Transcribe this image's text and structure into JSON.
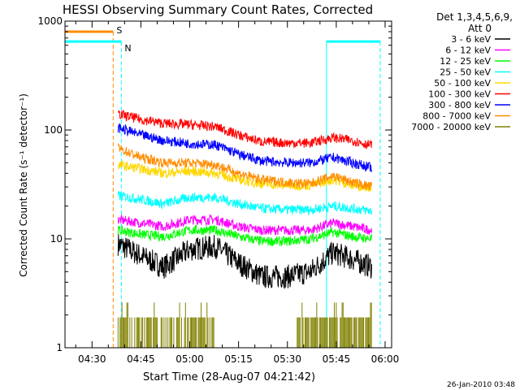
{
  "chart_data": {
    "type": "line",
    "title": "HESSI Observing Summary Count Rates, Corrected",
    "xlabel": "Start Time (28-Aug-07 04:21:42)",
    "ylabel": "Corrected Count Rate (s⁻¹ detector⁻¹)",
    "yscale": "log",
    "ylim": [
      1,
      1000
    ],
    "xlim": [
      "04:21:42",
      "06:02:00"
    ],
    "x_ticks": [
      "04:30",
      "04:45",
      "05:00",
      "05:15",
      "05:30",
      "05:45",
      "06:00"
    ],
    "y_ticks": [
      "1",
      "10",
      "100",
      "1000"
    ],
    "legend_position": "right",
    "legend_header": [
      "Det 1,3,4,5,6,9,",
      "Att 0"
    ],
    "timestamp": "26-Jan-2010 03:48",
    "series": [
      {
        "name": "3 - 6 keV",
        "color": "#000000",
        "x": [
          "04:38",
          "04:45",
          "04:52",
          "05:00",
          "05:08",
          "05:15",
          "05:22",
          "05:30",
          "05:37",
          "05:44",
          "05:50",
          "05:56"
        ],
        "y": [
          9,
          7,
          5.5,
          8,
          8.5,
          6,
          4.5,
          4.5,
          5,
          7.5,
          6.5,
          5.5
        ]
      },
      {
        "name": "6 - 12 keV",
        "color": "#ff00ff",
        "x": [
          "04:38",
          "04:45",
          "04:52",
          "05:00",
          "05:08",
          "05:15",
          "05:22",
          "05:30",
          "05:37",
          "05:44",
          "05:50",
          "05:56"
        ],
        "y": [
          15,
          14,
          13,
          15,
          15,
          13,
          12,
          12,
          12,
          14,
          13,
          12
        ]
      },
      {
        "name": "12 - 25 keV",
        "color": "#00ff00",
        "x": [
          "04:38",
          "04:45",
          "04:52",
          "05:00",
          "05:08",
          "05:15",
          "05:22",
          "05:30",
          "05:37",
          "05:44",
          "05:50",
          "05:56"
        ],
        "y": [
          12,
          11,
          10.5,
          12,
          12,
          10.5,
          9.5,
          9.5,
          10,
          11.5,
          10.5,
          10
        ]
      },
      {
        "name": "25 - 50 keV",
        "color": "#00ffff",
        "x": [
          "04:38",
          "04:45",
          "04:52",
          "05:00",
          "05:08",
          "05:15",
          "05:22",
          "05:30",
          "05:37",
          "05:44",
          "05:50",
          "05:56"
        ],
        "y": [
          25,
          23,
          21,
          24,
          24,
          21,
          19,
          18.5,
          18.5,
          20,
          19,
          18
        ]
      },
      {
        "name": "50 - 100 keV",
        "color": "#ffd700",
        "x": [
          "04:38",
          "04:45",
          "04:52",
          "05:00",
          "05:08",
          "05:15",
          "05:22",
          "05:30",
          "05:37",
          "05:44",
          "05:50",
          "05:56"
        ],
        "y": [
          48,
          44,
          40,
          42,
          40,
          35,
          32,
          31,
          31,
          35,
          31,
          30
        ]
      },
      {
        "name": "100 - 300 keV",
        "color": "#ff0000",
        "x": [
          "04:38",
          "04:45",
          "04:52",
          "05:00",
          "05:08",
          "05:15",
          "05:22",
          "05:30",
          "05:37",
          "05:44",
          "05:50",
          "05:56"
        ],
        "y": [
          140,
          125,
          115,
          112,
          107,
          90,
          78,
          76,
          76,
          85,
          80,
          72
        ]
      },
      {
        "name": "300 - 800 keV",
        "color": "#0000ff",
        "x": [
          "04:38",
          "04:45",
          "04:52",
          "05:00",
          "05:08",
          "05:15",
          "05:22",
          "05:30",
          "05:37",
          "05:44",
          "05:50",
          "05:56"
        ],
        "y": [
          105,
          90,
          80,
          75,
          73,
          60,
          52,
          50,
          50,
          56,
          50,
          45
        ]
      },
      {
        "name": "800 - 7000 keV",
        "color": "#ff8c00",
        "x": [
          "04:38",
          "04:45",
          "04:52",
          "05:00",
          "05:08",
          "05:15",
          "05:22",
          "05:30",
          "05:37",
          "05:44",
          "05:50",
          "05:56"
        ],
        "y": [
          68,
          56,
          50,
          50,
          48,
          40,
          35,
          33,
          32,
          38,
          33,
          30
        ]
      },
      {
        "name": "7000 - 20000 keV",
        "color": "#808000",
        "x": [
          "04:38",
          "04:45",
          "05:00",
          "05:15",
          "05:30",
          "05:38",
          "05:45",
          "05:56"
        ],
        "y": [
          1.8,
          1.8,
          1.8,
          1.8,
          1.8,
          1.8,
          1.8,
          1.8
        ]
      }
    ],
    "markers": [
      {
        "label": "S",
        "color": "#ff8c00",
        "level": 800,
        "x_start": "04:21:42",
        "x_end": "04:36:30",
        "end_line": "04:36:30"
      },
      {
        "label": "N",
        "color": "#00ffff",
        "level": 650,
        "x_start": "04:21:42",
        "x_end": "04:39:00",
        "end_line": "04:39:00"
      },
      {
        "label": "",
        "color": "#00ffff",
        "level": 650,
        "x_start": "05:42:00",
        "x_end": "05:58:30",
        "start_line": "05:42:00",
        "end_line": "05:58:30"
      }
    ]
  }
}
